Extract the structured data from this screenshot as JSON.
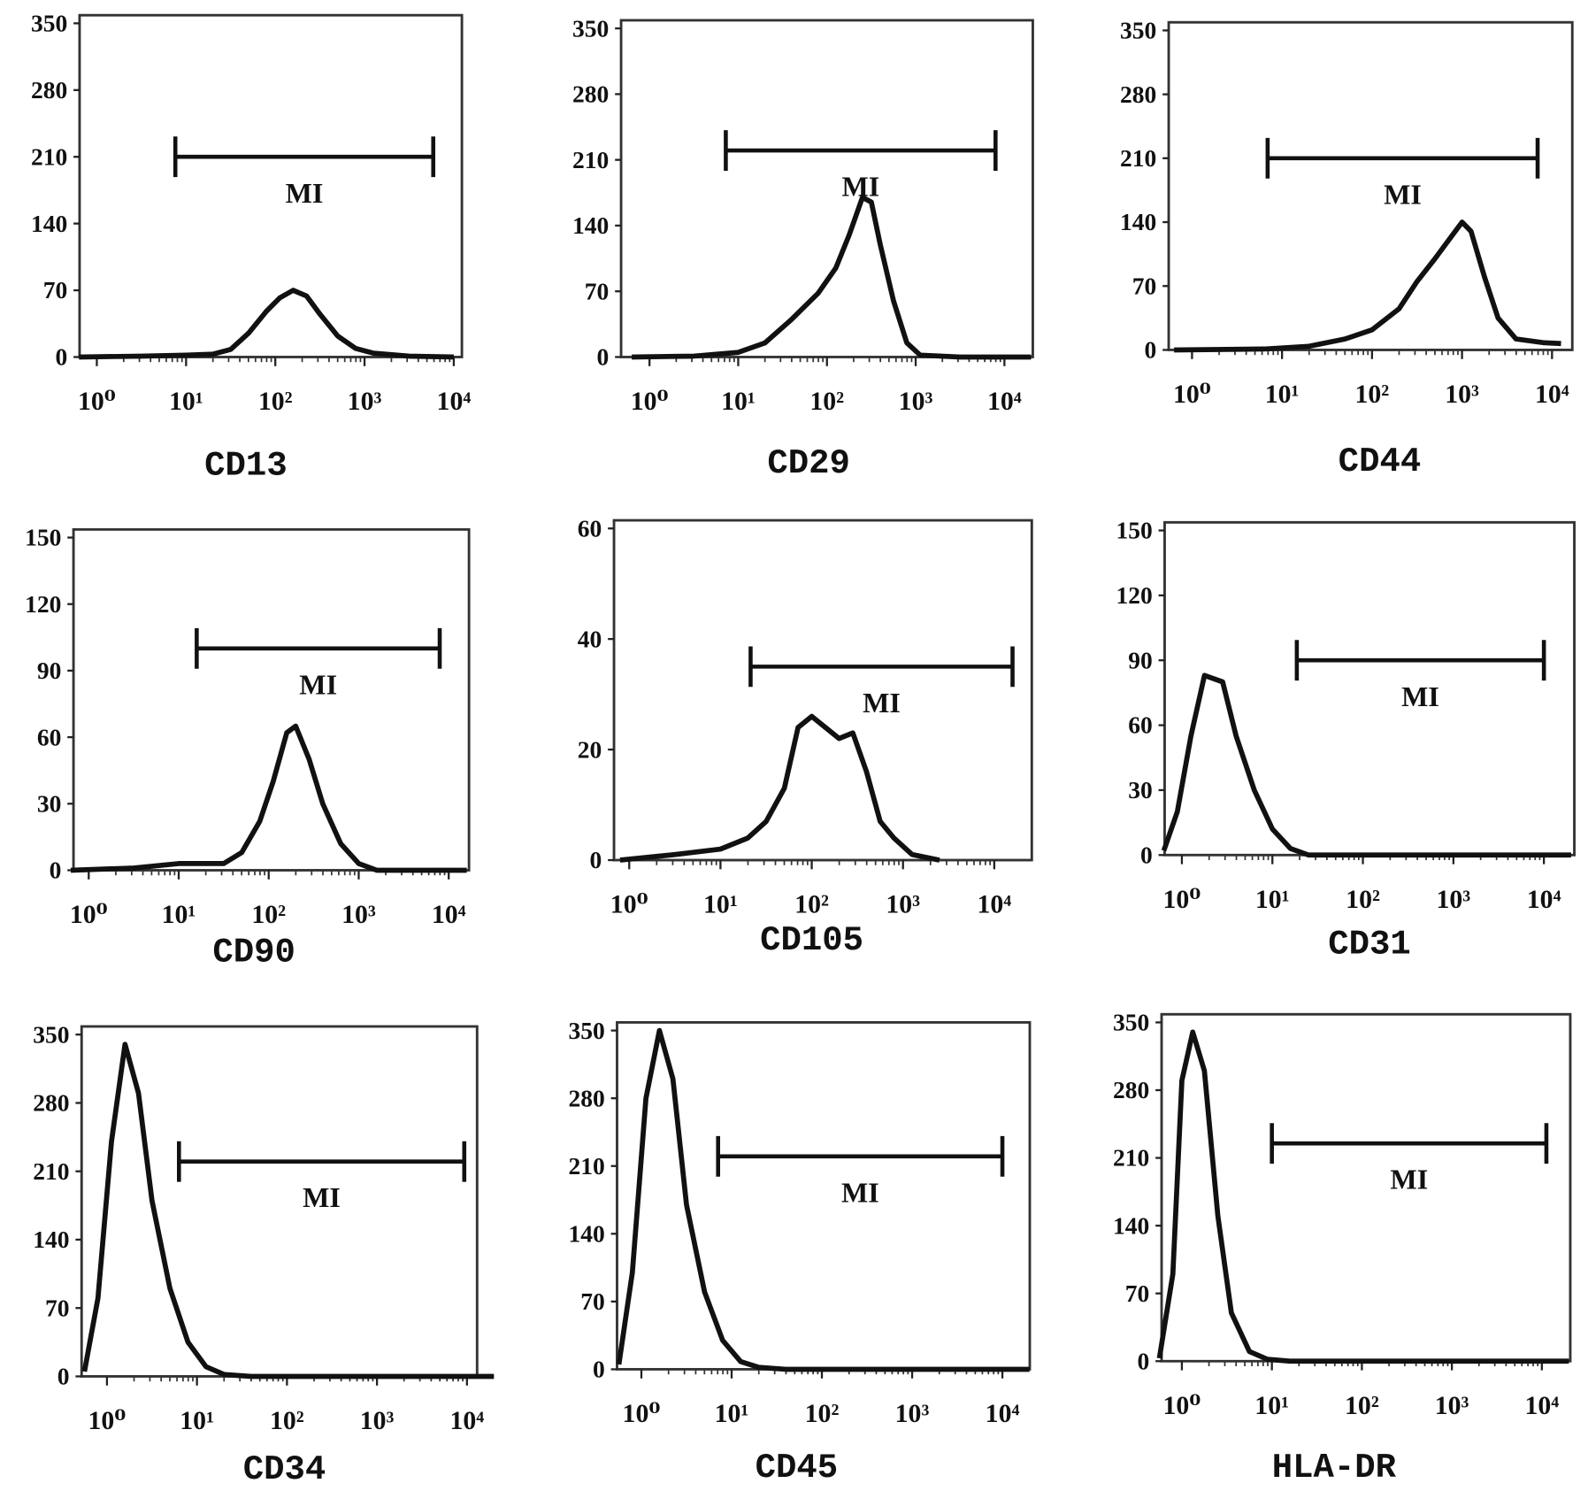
{
  "chart_data": [
    {
      "type": "line",
      "title": "CD13",
      "xscale": "log",
      "x_tick_labels": [
        "10⁰",
        "10¹",
        "10²",
        "10³",
        "10⁴"
      ],
      "y_ticks": [
        0,
        70,
        140,
        210,
        280,
        350
      ],
      "ylim": [
        0,
        350
      ],
      "marker": {
        "label": "MI",
        "range_log10": [
          0.88,
          3.77
        ],
        "level": 210
      },
      "points": [
        [
          -0.2,
          0
        ],
        [
          0.5,
          1
        ],
        [
          1.0,
          2
        ],
        [
          1.3,
          3
        ],
        [
          1.5,
          8
        ],
        [
          1.7,
          25
        ],
        [
          1.9,
          48
        ],
        [
          2.05,
          62
        ],
        [
          2.2,
          70
        ],
        [
          2.35,
          64
        ],
        [
          2.5,
          45
        ],
        [
          2.7,
          22
        ],
        [
          2.9,
          9
        ],
        [
          3.1,
          4
        ],
        [
          3.5,
          1
        ],
        [
          4.0,
          0
        ]
      ]
    },
    {
      "type": "line",
      "title": "CD29",
      "xscale": "log",
      "x_tick_labels": [
        "10⁰",
        "10¹",
        "10²",
        "10³",
        "10⁴"
      ],
      "y_ticks": [
        0,
        70,
        140,
        210,
        280,
        350
      ],
      "ylim": [
        0,
        350
      ],
      "marker": {
        "label": "MI",
        "range_log10": [
          0.86,
          3.9
        ],
        "level": 220
      },
      "points": [
        [
          -0.2,
          0
        ],
        [
          0.5,
          1
        ],
        [
          1.0,
          5
        ],
        [
          1.3,
          15
        ],
        [
          1.6,
          40
        ],
        [
          1.9,
          68
        ],
        [
          2.1,
          95
        ],
        [
          2.25,
          130
        ],
        [
          2.4,
          170
        ],
        [
          2.5,
          165
        ],
        [
          2.6,
          120
        ],
        [
          2.75,
          60
        ],
        [
          2.9,
          15
        ],
        [
          3.05,
          2
        ],
        [
          3.5,
          0
        ],
        [
          4.3,
          0
        ]
      ]
    },
    {
      "type": "line",
      "title": "CD44",
      "xscale": "log",
      "x_tick_labels": [
        "10⁰",
        "10¹",
        "10²",
        "10³",
        "10⁴"
      ],
      "y_ticks": [
        0,
        70,
        140,
        210,
        280,
        350
      ],
      "ylim": [
        0,
        350
      ],
      "marker": {
        "label": "MI",
        "range_log10": [
          0.84,
          3.84
        ],
        "level": 210
      },
      "points": [
        [
          -0.2,
          0
        ],
        [
          0.8,
          1
        ],
        [
          1.3,
          4
        ],
        [
          1.7,
          12
        ],
        [
          2.0,
          22
        ],
        [
          2.3,
          45
        ],
        [
          2.5,
          75
        ],
        [
          2.7,
          100
        ],
        [
          2.85,
          120
        ],
        [
          3.0,
          140
        ],
        [
          3.1,
          130
        ],
        [
          3.25,
          80
        ],
        [
          3.4,
          35
        ],
        [
          3.6,
          12
        ],
        [
          3.9,
          8
        ],
        [
          4.1,
          7
        ]
      ]
    },
    {
      "type": "line",
      "title": "CD90",
      "xscale": "log",
      "x_tick_labels": [
        "10⁰",
        "10¹",
        "10²",
        "10³",
        "10⁴"
      ],
      "y_ticks": [
        0,
        30,
        60,
        90,
        120,
        150
      ],
      "ylim": [
        0,
        150
      ],
      "marker": {
        "label": "MI",
        "range_log10": [
          1.2,
          3.9
        ],
        "level": 100
      },
      "points": [
        [
          -0.2,
          0
        ],
        [
          0.5,
          1
        ],
        [
          1.0,
          3
        ],
        [
          1.5,
          3
        ],
        [
          1.7,
          8
        ],
        [
          1.9,
          22
        ],
        [
          2.05,
          40
        ],
        [
          2.2,
          62
        ],
        [
          2.3,
          65
        ],
        [
          2.45,
          50
        ],
        [
          2.6,
          30
        ],
        [
          2.8,
          12
        ],
        [
          3.0,
          3
        ],
        [
          3.2,
          0
        ],
        [
          4.2,
          0
        ]
      ]
    },
    {
      "type": "line",
      "title": "CD105",
      "xscale": "log",
      "x_tick_labels": [
        "10⁰",
        "10¹",
        "10²",
        "10³",
        "10⁴"
      ],
      "y_ticks": [
        0,
        20,
        40,
        60
      ],
      "ylim": [
        0,
        60
      ],
      "marker": {
        "label": "MI",
        "range_log10": [
          1.33,
          4.2
        ],
        "level": 35
      },
      "points": [
        [
          -0.1,
          0
        ],
        [
          0.5,
          1
        ],
        [
          1.0,
          2
        ],
        [
          1.3,
          4
        ],
        [
          1.5,
          7
        ],
        [
          1.7,
          13
        ],
        [
          1.85,
          24
        ],
        [
          2.0,
          26
        ],
        [
          2.15,
          24
        ],
        [
          2.3,
          22
        ],
        [
          2.45,
          23
        ],
        [
          2.6,
          16
        ],
        [
          2.75,
          7
        ],
        [
          2.9,
          4
        ],
        [
          3.1,
          1
        ],
        [
          3.4,
          0
        ]
      ]
    },
    {
      "type": "line",
      "title": "CD31",
      "xscale": "log",
      "x_tick_labels": [
        "10⁰",
        "10¹",
        "10²",
        "10³",
        "10⁴"
      ],
      "y_ticks": [
        0,
        30,
        60,
        90,
        120,
        150
      ],
      "ylim": [
        0,
        150
      ],
      "marker": {
        "label": "MI",
        "range_log10": [
          1.27,
          4.0
        ],
        "level": 90
      },
      "points": [
        [
          -0.2,
          2
        ],
        [
          -0.05,
          20
        ],
        [
          0.1,
          55
        ],
        [
          0.25,
          83
        ],
        [
          0.45,
          80
        ],
        [
          0.6,
          55
        ],
        [
          0.8,
          30
        ],
        [
          1.0,
          12
        ],
        [
          1.2,
          3
        ],
        [
          1.4,
          0
        ],
        [
          4.3,
          0
        ]
      ]
    },
    {
      "type": "line",
      "title": "CD34",
      "xscale": "log",
      "x_tick_labels": [
        "10⁰",
        "10¹",
        "10²",
        "10³",
        "10⁴"
      ],
      "y_ticks": [
        0,
        70,
        140,
        210,
        280,
        350
      ],
      "ylim": [
        0,
        350
      ],
      "marker": {
        "label": "MI",
        "range_log10": [
          0.8,
          3.97
        ],
        "level": 220
      },
      "points": [
        [
          -0.25,
          5
        ],
        [
          -0.1,
          80
        ],
        [
          0.05,
          240
        ],
        [
          0.2,
          340
        ],
        [
          0.35,
          290
        ],
        [
          0.5,
          180
        ],
        [
          0.7,
          90
        ],
        [
          0.9,
          35
        ],
        [
          1.1,
          10
        ],
        [
          1.3,
          2
        ],
        [
          1.6,
          0
        ],
        [
          4.3,
          0
        ]
      ]
    },
    {
      "type": "line",
      "title": "CD45",
      "xscale": "log",
      "x_tick_labels": [
        "10⁰",
        "10¹",
        "10²",
        "10³",
        "10⁴"
      ],
      "y_ticks": [
        0,
        70,
        140,
        210,
        280,
        350
      ],
      "ylim": [
        0,
        350
      ],
      "marker": {
        "label": "MI",
        "range_log10": [
          0.85,
          4.0
        ],
        "level": 220
      },
      "points": [
        [
          -0.25,
          5
        ],
        [
          -0.1,
          100
        ],
        [
          0.05,
          280
        ],
        [
          0.2,
          350
        ],
        [
          0.35,
          300
        ],
        [
          0.5,
          170
        ],
        [
          0.7,
          80
        ],
        [
          0.9,
          30
        ],
        [
          1.1,
          8
        ],
        [
          1.3,
          2
        ],
        [
          1.6,
          0
        ],
        [
          4.3,
          0
        ]
      ]
    },
    {
      "type": "line",
      "title": "HLA-DR",
      "xscale": "log",
      "x_tick_labels": [
        "10⁰",
        "10¹",
        "10²",
        "10³",
        "10⁴"
      ],
      "y_ticks": [
        0,
        70,
        140,
        210,
        280,
        350
      ],
      "ylim": [
        0,
        350
      ],
      "marker": {
        "label": "MI",
        "range_log10": [
          1.0,
          4.05
        ],
        "level": 225
      },
      "points": [
        [
          -0.25,
          3
        ],
        [
          -0.1,
          90
        ],
        [
          0.0,
          290
        ],
        [
          0.12,
          340
        ],
        [
          0.25,
          300
        ],
        [
          0.4,
          150
        ],
        [
          0.55,
          50
        ],
        [
          0.75,
          10
        ],
        [
          0.95,
          2
        ],
        [
          1.2,
          0
        ],
        [
          4.3,
          0
        ]
      ]
    }
  ]
}
